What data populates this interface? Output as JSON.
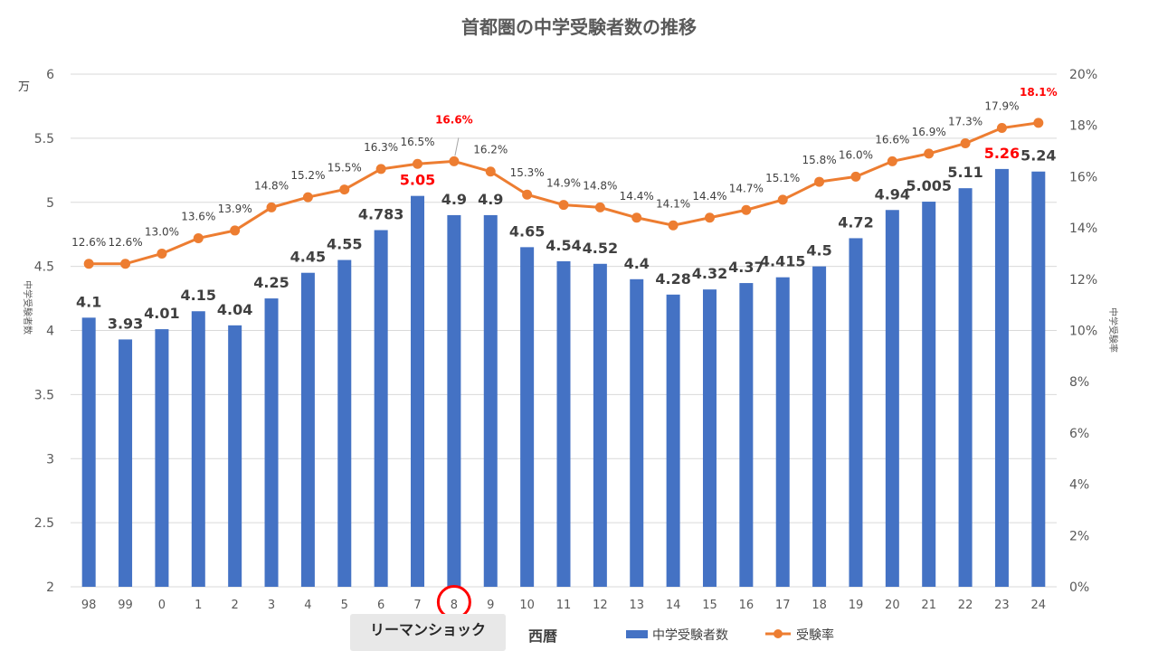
{
  "chart_data": {
    "type": "bar",
    "title": "首都圏の中学受験者数の推移",
    "categories": [
      "98",
      "99",
      "0",
      "1",
      "2",
      "3",
      "4",
      "5",
      "6",
      "7",
      "8",
      "9",
      "10",
      "11",
      "12",
      "13",
      "14",
      "15",
      "16",
      "17",
      "18",
      "19",
      "20",
      "21",
      "22",
      "23",
      "24"
    ],
    "series": [
      {
        "name": "中学受験者数",
        "type": "bar",
        "axis": "left",
        "color": "#4472c4",
        "values": [
          4.1,
          3.93,
          4.01,
          4.15,
          4.04,
          4.25,
          4.45,
          4.55,
          4.783,
          5.05,
          4.9,
          4.9,
          4.65,
          4.54,
          4.52,
          4.4,
          4.28,
          4.32,
          4.37,
          4.415,
          4.5,
          4.72,
          4.94,
          5.005,
          5.11,
          5.26,
          5.24
        ],
        "labels": [
          "4.1",
          "3.93",
          "4.01",
          "4.15",
          "4.04",
          "4.25",
          "4.45",
          "4.55",
          "4.783",
          "5.05",
          "4.9",
          "4.9",
          "4.65",
          "4.54",
          "4.52",
          "4.4",
          "4.28",
          "4.32",
          "4.37",
          "4.415",
          "4.5",
          "4.72",
          "4.94",
          "5.005",
          "5.11",
          "5.26",
          "5.24"
        ],
        "highlighted_labels": [
          9,
          25
        ]
      },
      {
        "name": "受験率",
        "type": "line",
        "axis": "right",
        "color": "#ed7d31",
        "values": [
          12.6,
          12.6,
          13.0,
          13.6,
          13.9,
          14.8,
          15.2,
          15.5,
          16.3,
          16.5,
          16.6,
          16.2,
          15.3,
          14.9,
          14.8,
          14.4,
          14.1,
          14.4,
          14.7,
          15.1,
          15.8,
          16.0,
          16.6,
          16.9,
          17.3,
          17.9,
          18.1
        ],
        "labels": [
          "12.6%",
          "12.6%",
          "13.0%",
          "13.6%",
          "13.9%",
          "14.8%",
          "15.2%",
          "15.5%",
          "16.3%",
          "16.5%",
          "16.6%",
          "16.2%",
          "15.3%",
          "14.9%",
          "14.8%",
          "14.4%",
          "14.1%",
          "14.4%",
          "14.7%",
          "15.1%",
          "15.8%",
          "16.0%",
          "16.6%",
          "16.9%",
          "17.3%",
          "17.9%",
          "18.1%"
        ],
        "highlighted_labels": [
          10,
          26
        ]
      }
    ],
    "y_left": {
      "ticks": [
        "2",
        "2.5",
        "3",
        "3.5",
        "4",
        "4.5",
        "5",
        "5.5",
        "6"
      ],
      "ylim": [
        2,
        6
      ],
      "unit": "万",
      "label": "中学受験者数"
    },
    "y_right": {
      "ticks": [
        "0%",
        "2%",
        "4%",
        "6%",
        "8%",
        "10%",
        "12%",
        "14%",
        "16%",
        "18%",
        "20%"
      ],
      "ylim": [
        0,
        20
      ],
      "label": "中学受験率"
    },
    "xlabel": "西暦",
    "grid": true,
    "legend_position": "bottom",
    "highlight_category": "8",
    "annotation": "リーマンショック",
    "colors": {
      "bar": "#4472c4",
      "line": "#ed7d31",
      "highlight": "#ff0000",
      "grid": "#d9d9d9"
    }
  }
}
